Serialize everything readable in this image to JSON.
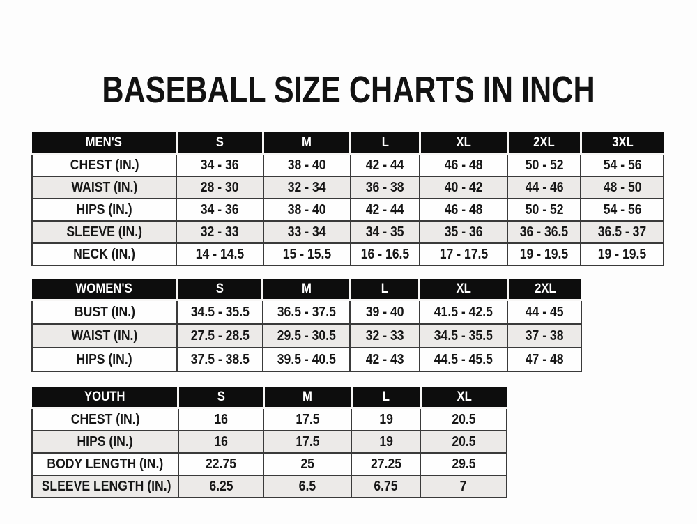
{
  "title": "BASEBALL SIZE CHARTS IN INCH",
  "colors": {
    "background": "#fdfdfd",
    "header_bg": "#0d0d0d",
    "header_text": "#ffffff",
    "row_alt_bg": "#eceae8",
    "border": "#3a3a3a",
    "text": "#161616"
  },
  "tables": [
    {
      "name": "MEN'S",
      "header": [
        "MEN'S",
        "S",
        "M",
        "L",
        "XL",
        "2XL",
        "3XL"
      ],
      "rows": [
        [
          "CHEST (IN.)",
          "34 - 36",
          "38 - 40",
          "42 - 44",
          "46 - 48",
          "50 - 52",
          "54 - 56"
        ],
        [
          "WAIST (IN.)",
          "28 - 30",
          "32 - 34",
          "36 - 38",
          "40 - 42",
          "44 - 46",
          "48 - 50"
        ],
        [
          "HIPS (IN.)",
          "34 - 36",
          "38 - 40",
          "42 - 44",
          "46 - 48",
          "50 - 52",
          "54 - 56"
        ],
        [
          "SLEEVE (IN.)",
          "32 - 33",
          "33 - 34",
          "34 - 35",
          "35 - 36",
          "36 - 36.5",
          "36.5 - 37"
        ],
        [
          "NECK (IN.)",
          "14 - 14.5",
          "15 - 15.5",
          "16 - 16.5",
          "17 - 17.5",
          "19 - 19.5",
          "19 - 19.5"
        ]
      ]
    },
    {
      "name": "WOMEN'S",
      "header": [
        "WOMEN'S",
        "S",
        "M",
        "L",
        "XL",
        "2XL"
      ],
      "rows": [
        [
          "BUST (IN.)",
          "34.5 - 35.5",
          "36.5 - 37.5",
          "39 - 40",
          "41.5 - 42.5",
          "44 - 45"
        ],
        [
          "WAIST (IN.)",
          "27.5 - 28.5",
          "29.5 - 30.5",
          "32 - 33",
          "34.5 - 35.5",
          "37 - 38"
        ],
        [
          "HIPS (IN.)",
          "37.5 - 38.5",
          "39.5 - 40.5",
          "42 - 43",
          "44.5 - 45.5",
          "47 - 48"
        ]
      ]
    },
    {
      "name": "YOUTH",
      "header": [
        "YOUTH",
        "S",
        "M",
        "L",
        "XL"
      ],
      "rows": [
        [
          "CHEST (IN.)",
          "16",
          "17.5",
          "19",
          "20.5"
        ],
        [
          "HIPS (IN.)",
          "16",
          "17.5",
          "19",
          "20.5"
        ],
        [
          "BODY LENGTH (IN.)",
          "22.75",
          "25",
          "27.25",
          "29.5"
        ],
        [
          "SLEEVE LENGTH (IN.)",
          "6.25",
          "6.5",
          "6.75",
          "7"
        ]
      ]
    }
  ]
}
